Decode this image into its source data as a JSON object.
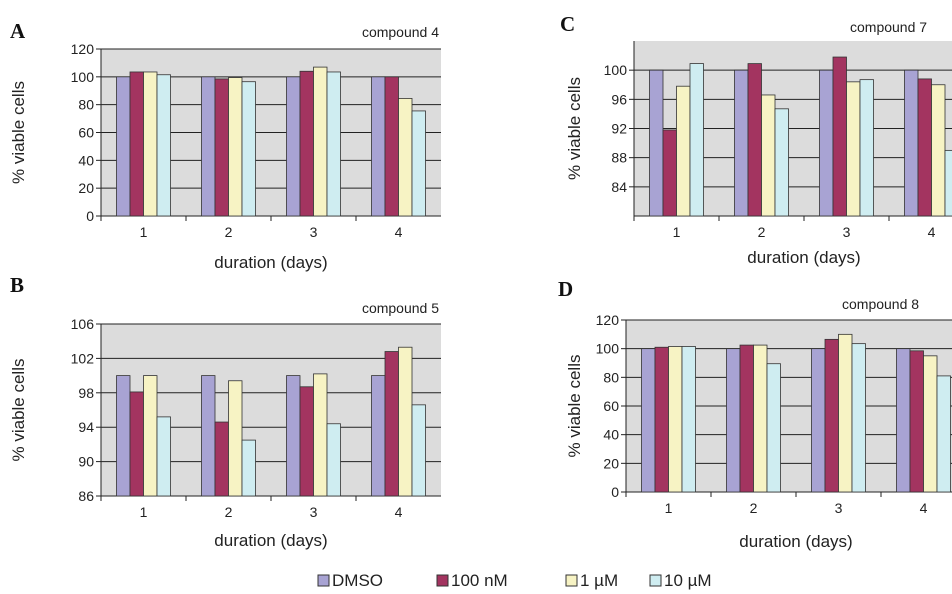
{
  "chart_data": [
    {
      "panel": "A",
      "type": "bar",
      "title": "compound 4",
      "xlabel": "duration (days)",
      "ylabel": "% viable cells",
      "categories": [
        "1",
        "2",
        "3",
        "4"
      ],
      "ylim": [
        0,
        120
      ],
      "yticks": [
        "0",
        "20",
        "40",
        "60",
        "80",
        "100",
        "120"
      ],
      "grid": true,
      "series": [
        {
          "name": "DMSO",
          "values": [
            100,
            100,
            100,
            100
          ]
        },
        {
          "name": "100 nM",
          "values": [
            103.5,
            98.5,
            104,
            100
          ]
        },
        {
          "name": "1 µM",
          "values": [
            103.5,
            99.5,
            107,
            84.5
          ]
        },
        {
          "name": "10 µM",
          "values": [
            101.5,
            96.5,
            103.5,
            75.5
          ]
        }
      ]
    },
    {
      "panel": "B",
      "type": "bar",
      "title": "compound 5",
      "xlabel": "duration (days)",
      "ylabel": "% viable cells",
      "categories": [
        "1",
        "2",
        "3",
        "4"
      ],
      "ylim": [
        86,
        106
      ],
      "yticks": [
        "86",
        "90",
        "94",
        "98",
        "102",
        "106"
      ],
      "grid": true,
      "series": [
        {
          "name": "DMSO",
          "values": [
            100,
            100,
            100,
            100
          ]
        },
        {
          "name": "100 nM",
          "values": [
            98.1,
            94.6,
            98.7,
            102.8
          ]
        },
        {
          "name": "1 µM",
          "values": [
            100,
            99.4,
            100.2,
            103.3
          ]
        },
        {
          "name": "10 µM",
          "values": [
            95.2,
            92.5,
            94.4,
            96.6
          ]
        }
      ]
    },
    {
      "panel": "C",
      "type": "bar",
      "title": "compound 7",
      "xlabel": "duration (days)",
      "ylabel": "% viable cells",
      "categories": [
        "1",
        "2",
        "3",
        "4"
      ],
      "ylim": [
        80,
        104
      ],
      "yticks": [
        "84",
        "88",
        "92",
        "96",
        "100"
      ],
      "grid": true,
      "series": [
        {
          "name": "DMSO",
          "values": [
            100,
            100,
            100,
            100
          ]
        },
        {
          "name": "100 nM",
          "values": [
            91.8,
            100.9,
            101.8,
            98.8
          ]
        },
        {
          "name": "1 µM",
          "values": [
            97.8,
            96.6,
            98.4,
            98
          ]
        },
        {
          "name": "10 µM",
          "values": [
            100.9,
            94.7,
            98.7,
            89
          ]
        }
      ]
    },
    {
      "panel": "D",
      "type": "bar",
      "title": "compound 8",
      "xlabel": "duration (days)",
      "ylabel": "% viable cells",
      "categories": [
        "1",
        "2",
        "3",
        "4"
      ],
      "ylim": [
        0,
        120
      ],
      "yticks": [
        "0",
        "20",
        "40",
        "60",
        "80",
        "100",
        "120"
      ],
      "grid": true,
      "series": [
        {
          "name": "DMSO",
          "values": [
            100,
            100,
            100,
            100
          ]
        },
        {
          "name": "100 nM",
          "values": [
            101,
            102.5,
            106.5,
            98.5
          ]
        },
        {
          "name": "1 µM",
          "values": [
            101.5,
            102.5,
            110,
            95
          ]
        },
        {
          "name": "10 µM",
          "values": [
            101.5,
            89.5,
            103.5,
            81
          ]
        }
      ]
    }
  ],
  "legend": {
    "placement": "bottom",
    "items": [
      "DMSO",
      "100 nM",
      "1 µM",
      "10 µM"
    ]
  },
  "colors": {
    "DMSO": "#A8A3D3",
    "100 nM": "#A33460",
    "1 µM": "#F7F3C4",
    "10 µM": "#CFEDF1",
    "plot_bg": "#DCDCDC",
    "bar_outline": "#333333"
  }
}
